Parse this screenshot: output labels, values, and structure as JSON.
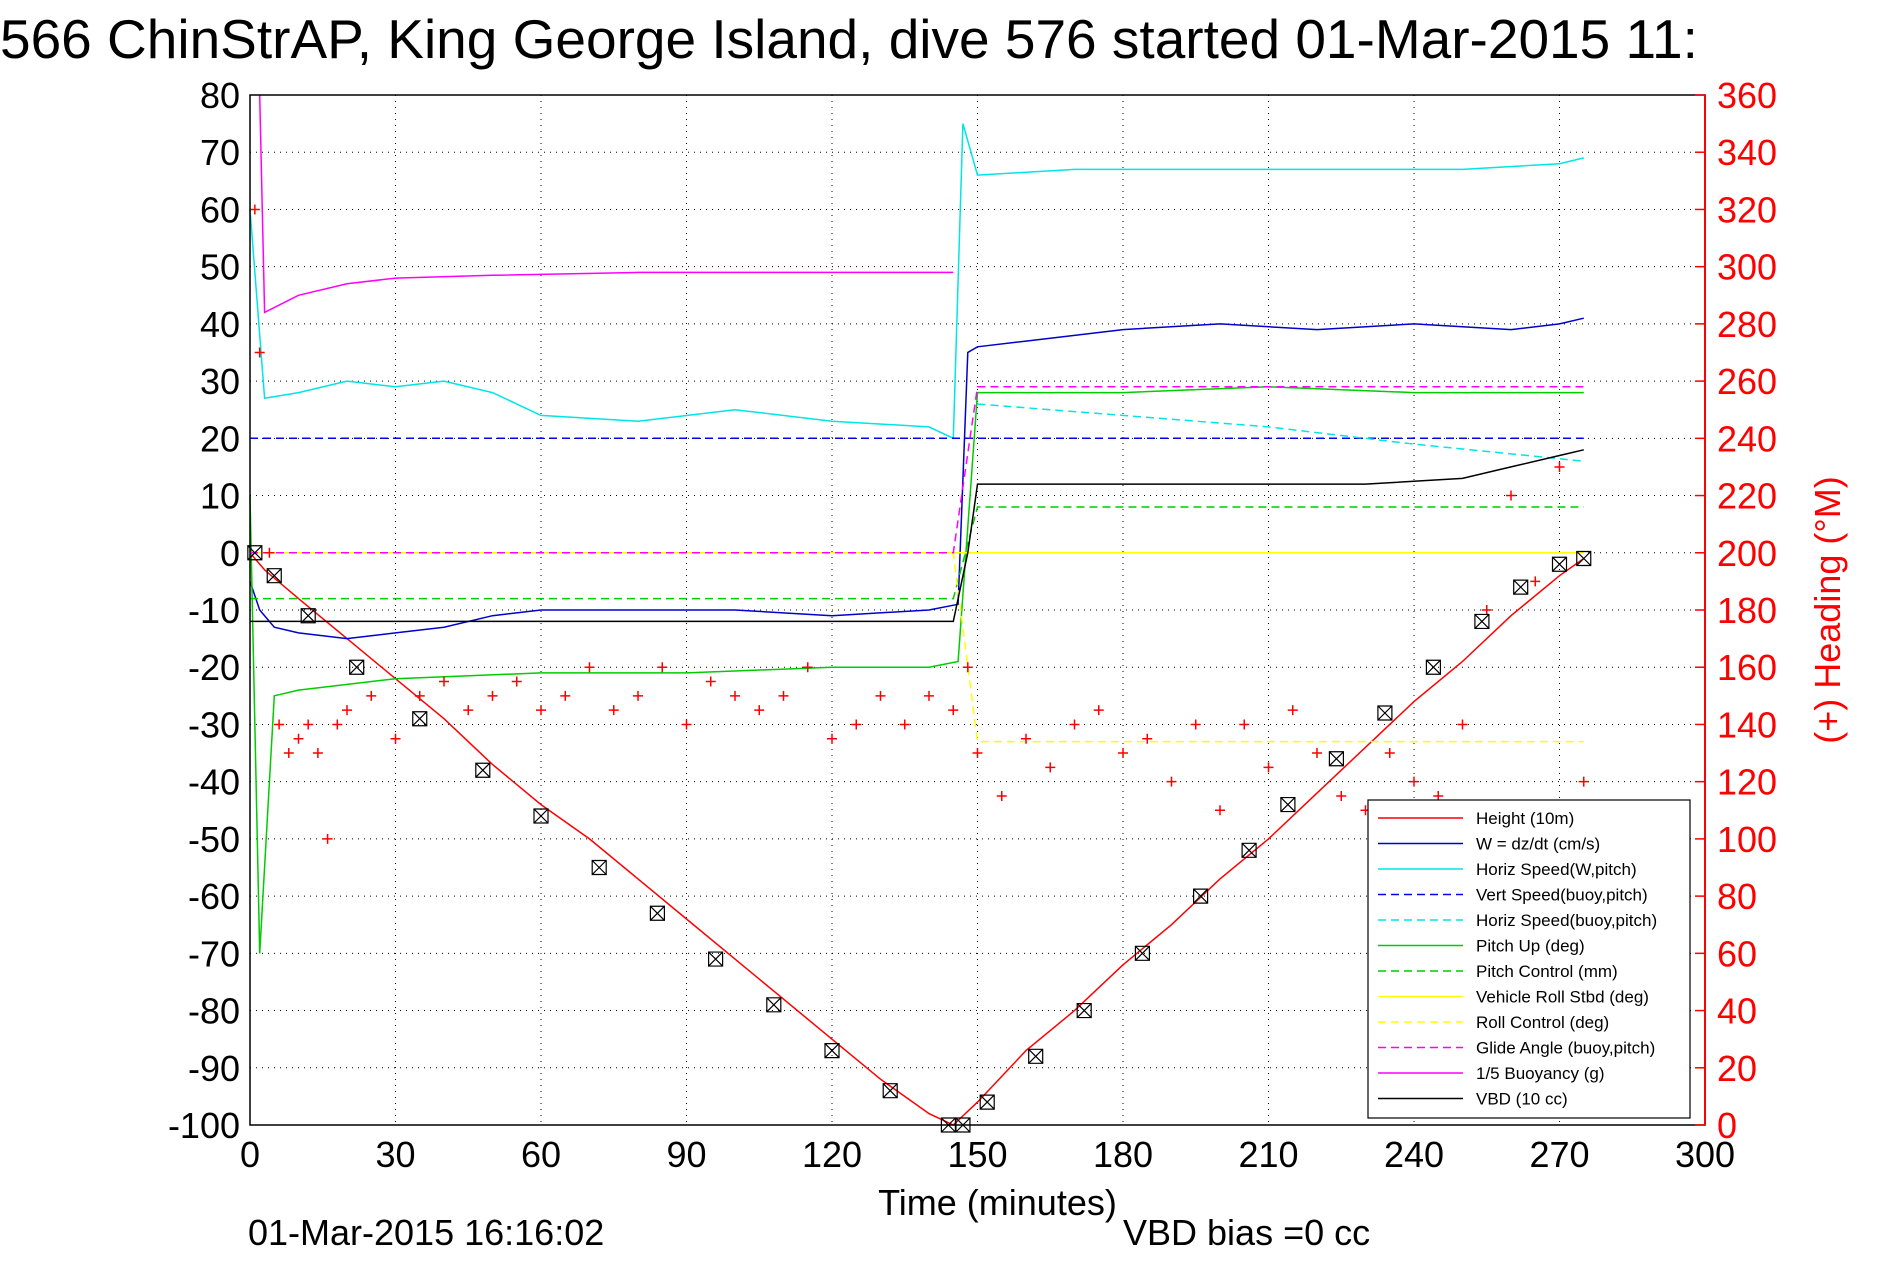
{
  "title": "566 ChinStrAP, King George Island, dive 576 started 01-Mar-2015 11:",
  "footer": {
    "timestamp": "01-Mar-2015 16:16:02",
    "vbd_bias": "VBD bias =0 cc"
  },
  "chart_data": {
    "type": "line",
    "title": "566 ChinStrAP, King George Island, dive 576 started 01-Mar-2015 11:",
    "xlabel": "Time (minutes)",
    "ylabel": "",
    "ylabel_right": "(+) Heading (°M)",
    "xlim": [
      0,
      300
    ],
    "ylim": [
      -100,
      80
    ],
    "ylim_right": [
      0,
      360
    ],
    "xticks": [
      "0",
      "30",
      "60",
      "90",
      "120",
      "150",
      "180",
      "210",
      "240",
      "270",
      "300"
    ],
    "yticks": [
      "80",
      "70",
      "60",
      "50",
      "40",
      "30",
      "20",
      "10",
      "0",
      "-10",
      "-20",
      "-30",
      "-40",
      "-50",
      "-60",
      "-70",
      "-80",
      "-90",
      "-100"
    ],
    "yticks_right": [
      "360",
      "340",
      "320",
      "300",
      "280",
      "260",
      "240",
      "220",
      "200",
      "180",
      "160",
      "140",
      "120",
      "100",
      "80",
      "60",
      "40",
      "20",
      "0"
    ],
    "grid": true,
    "legend_position": "bottom-right",
    "colors": {
      "right_axis": "#ff0000"
    },
    "series": [
      {
        "name": "Height (10m)",
        "color": "#ff0000",
        "style": "solid",
        "x": [
          0,
          3,
          10,
          20,
          30,
          40,
          50,
          60,
          70,
          80,
          90,
          100,
          110,
          120,
          130,
          140,
          145,
          150,
          160,
          170,
          180,
          190,
          200,
          210,
          220,
          230,
          240,
          250,
          260,
          270,
          275
        ],
        "y": [
          0,
          -3,
          -8,
          -15,
          -22,
          -29,
          -37,
          -44,
          -50,
          -57,
          -64,
          -71,
          -78,
          -85,
          -92,
          -98,
          -100,
          -96,
          -87,
          -80,
          -72,
          -65,
          -57,
          -50,
          -42,
          -34,
          -26,
          -19,
          -11,
          -4,
          -1
        ]
      },
      {
        "name": "W = dz/dt (cm/s)",
        "color": "#0000cc",
        "style": "solid",
        "x": [
          0,
          2,
          5,
          10,
          20,
          30,
          40,
          50,
          60,
          80,
          100,
          120,
          140,
          146,
          148,
          150,
          160,
          180,
          200,
          220,
          240,
          260,
          270,
          275
        ],
        "y": [
          -5,
          -10,
          -13,
          -14,
          -15,
          -14,
          -13,
          -11,
          -10,
          -10,
          -10,
          -11,
          -10,
          -9,
          35,
          36,
          37,
          39,
          40,
          39,
          40,
          39,
          40,
          41
        ]
      },
      {
        "name": "Horiz Speed(W,pitch)",
        "color": "#00e5e5",
        "style": "solid",
        "x": [
          0,
          3,
          10,
          20,
          30,
          40,
          50,
          60,
          80,
          100,
          120,
          140,
          145,
          147,
          150,
          170,
          190,
          210,
          230,
          250,
          270,
          275
        ],
        "y": [
          60,
          27,
          28,
          30,
          29,
          30,
          28,
          24,
          23,
          25,
          23,
          22,
          20,
          75,
          66,
          67,
          67,
          67,
          67,
          67,
          68,
          69
        ]
      },
      {
        "name": "Vert Speed(buoy,pitch)",
        "color": "#0000ff",
        "style": "dashed",
        "x": [
          0,
          150,
          275
        ],
        "y": [
          20,
          20,
          20
        ]
      },
      {
        "name": "Horiz Speed(buoy,pitch)",
        "color": "#00e5e5",
        "style": "dashed",
        "x": [
          150,
          180,
          210,
          240,
          275
        ],
        "y": [
          26,
          24,
          22,
          19,
          16
        ]
      },
      {
        "name": "Pitch Up (deg)",
        "color": "#00cc00",
        "style": "solid",
        "x": [
          0,
          2,
          5,
          10,
          30,
          60,
          90,
          120,
          140,
          146,
          150,
          180,
          210,
          240,
          275
        ],
        "y": [
          10,
          -70,
          -25,
          -24,
          -22,
          -21,
          -21,
          -20,
          -20,
          -19,
          28,
          28,
          29,
          28,
          28
        ]
      },
      {
        "name": "Pitch Control (mm)",
        "color": "#00cc00",
        "style": "dashed",
        "x": [
          0,
          145,
          150,
          275
        ],
        "y": [
          -8,
          -8,
          8,
          8
        ]
      },
      {
        "name": "Vehicle Roll Stbd (deg)",
        "color": "#ffff00",
        "style": "solid",
        "x": [
          0,
          20,
          40,
          60,
          80,
          100,
          120,
          140,
          150,
          170,
          190,
          210,
          230,
          250,
          275
        ],
        "y": [
          0,
          0,
          0,
          0,
          0,
          0,
          0,
          0,
          0,
          0,
          0,
          0,
          0,
          0,
          0
        ]
      },
      {
        "name": "Roll Control (deg)",
        "color": "#ffff00",
        "style": "dashed",
        "x": [
          0,
          145,
          150,
          275
        ],
        "y": [
          0,
          0,
          -33,
          -33
        ]
      },
      {
        "name": "Glide Angle (buoy,pitch)",
        "color": "#ff00ff",
        "style": "dashed",
        "x": [
          0,
          145,
          150,
          275
        ],
        "y": [
          0,
          0,
          29,
          29
        ]
      },
      {
        "name": "1/5 Buoyancy (g)",
        "color": "#ff00ff",
        "style": "solid",
        "x": [
          2,
          3,
          10,
          20,
          30,
          50,
          80,
          110,
          145
        ],
        "y": [
          80,
          42,
          45,
          47,
          48,
          48.5,
          49,
          49,
          49
        ]
      },
      {
        "name": "VBD (10 cc)",
        "color": "#000000",
        "style": "solid",
        "x": [
          0,
          3,
          10,
          145,
          148,
          150,
          180,
          220,
          230,
          250,
          260,
          270,
          275
        ],
        "y": [
          -12,
          -12,
          -12,
          -12,
          0,
          12,
          12,
          12,
          12,
          13,
          15,
          17,
          18
        ]
      }
    ],
    "heading_series": {
      "name": "(+) Heading (°M)",
      "color": "#ff0000",
      "marker": "+",
      "axis": "right",
      "x": [
        1,
        2,
        4,
        6,
        8,
        10,
        12,
        14,
        16,
        18,
        20,
        25,
        30,
        35,
        40,
        45,
        50,
        55,
        60,
        65,
        70,
        75,
        80,
        85,
        90,
        95,
        100,
        105,
        110,
        115,
        120,
        125,
        130,
        135,
        140,
        145,
        148,
        150,
        155,
        160,
        165,
        170,
        175,
        180,
        185,
        190,
        195,
        200,
        205,
        210,
        215,
        220,
        225,
        230,
        235,
        240,
        245,
        250,
        255,
        260,
        265,
        270,
        275
      ],
      "y": [
        320,
        270,
        200,
        140,
        130,
        135,
        140,
        130,
        100,
        140,
        145,
        150,
        135,
        150,
        155,
        145,
        150,
        155,
        145,
        150,
        160,
        145,
        150,
        160,
        140,
        155,
        150,
        145,
        150,
        160,
        135,
        140,
        150,
        140,
        150,
        145,
        160,
        130,
        115,
        135,
        125,
        140,
        145,
        130,
        135,
        120,
        140,
        110,
        140,
        125,
        145,
        130,
        115,
        110,
        130,
        120,
        115,
        140,
        180,
        220,
        190,
        230,
        120
      ]
    },
    "dive_markers": {
      "name": "",
      "marker": "square-x",
      "color": "#000000",
      "x": [
        1,
        5,
        12,
        22,
        35,
        48,
        60,
        72,
        84,
        96,
        108,
        120,
        132,
        144,
        147,
        152,
        162,
        172,
        184,
        196,
        206,
        214,
        224,
        234,
        244,
        254,
        262,
        270,
        275
      ],
      "y": [
        0,
        -4,
        -11,
        -20,
        -29,
        -38,
        -46,
        -55,
        -63,
        -71,
        -79,
        -87,
        -94,
        -100,
        -100,
        -96,
        -88,
        -80,
        -70,
        -60,
        -52,
        -44,
        -36,
        -28,
        -20,
        -12,
        -6,
        -2,
        -1
      ]
    }
  }
}
